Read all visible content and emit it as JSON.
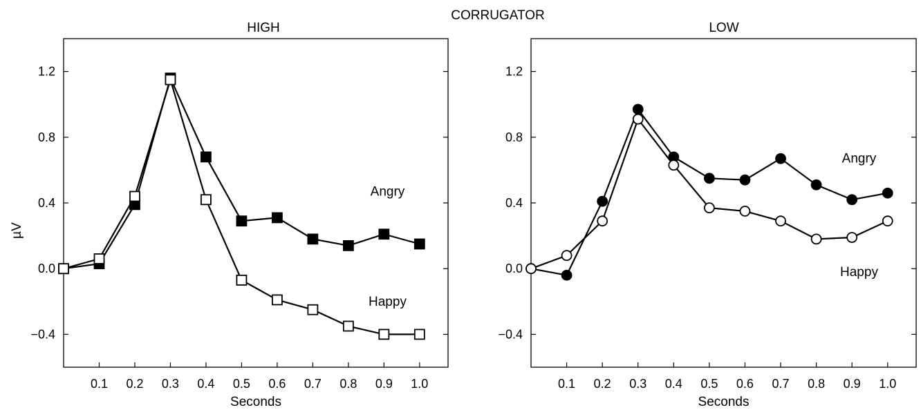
{
  "title": "CORRUGATOR",
  "colors": {
    "filled": "#000000",
    "open": "#ffffff",
    "stroke": "#000000"
  },
  "chart_data": [
    {
      "type": "line",
      "title": "HIGH",
      "xlabel": "Seconds",
      "ylabel": "µV",
      "xlim": [
        0.0,
        1.08
      ],
      "ylim": [
        -0.6,
        1.4
      ],
      "xticks": [
        0.1,
        0.2,
        0.3,
        0.4,
        0.5,
        0.6,
        0.7,
        0.8,
        0.9,
        1.0
      ],
      "xtick_labels": [
        "0.1",
        "0.2",
        "0.3",
        "0.4",
        "0.5",
        "0.6",
        "0.7",
        "0.8",
        "0.9",
        "1.0"
      ],
      "yticks": [
        -0.4,
        0.0,
        0.4,
        0.8,
        1.2
      ],
      "ytick_labels": [
        "−0.4",
        "0.0",
        "0.4",
        "0.8",
        "1.2"
      ],
      "grid": false,
      "marker": "square",
      "x": [
        0.0,
        0.1,
        0.2,
        0.3,
        0.4,
        0.5,
        0.6,
        0.7,
        0.8,
        0.9,
        1.0
      ],
      "series": [
        {
          "name": "Angry",
          "fill": "filled",
          "values": [
            0.0,
            0.03,
            0.39,
            1.16,
            0.68,
            0.29,
            0.31,
            0.18,
            0.14,
            0.21,
            0.15
          ]
        },
        {
          "name": "Happy",
          "fill": "open",
          "values": [
            0.0,
            0.06,
            0.44,
            1.15,
            0.42,
            -0.07,
            -0.19,
            -0.25,
            -0.35,
            -0.4,
            -0.4
          ]
        }
      ],
      "annotations": [
        {
          "text": "Angry",
          "x": 0.91,
          "y": 0.47
        },
        {
          "text": "Happy",
          "x": 0.91,
          "y": -0.2
        }
      ]
    },
    {
      "type": "line",
      "title": "LOW",
      "xlabel": "Seconds",
      "ylabel": "",
      "xlim": [
        0.0,
        1.08
      ],
      "ylim": [
        -0.6,
        1.4
      ],
      "xticks": [
        0.1,
        0.2,
        0.3,
        0.4,
        0.5,
        0.6,
        0.7,
        0.8,
        0.9,
        1.0
      ],
      "xtick_labels": [
        "0.1",
        "0.2",
        "0.3",
        "0.4",
        "0.5",
        "0.6",
        "0.7",
        "0.8",
        "0.9",
        "1.0"
      ],
      "yticks": [
        -0.4,
        0.0,
        0.4,
        0.8,
        1.2
      ],
      "ytick_labels": [
        "−0.4",
        "0.0",
        "0.4",
        "0.8",
        "1.2"
      ],
      "grid": false,
      "marker": "circle",
      "x": [
        0.0,
        0.1,
        0.2,
        0.3,
        0.4,
        0.5,
        0.6,
        0.7,
        0.8,
        0.9,
        1.0
      ],
      "series": [
        {
          "name": "Angry",
          "fill": "filled",
          "values": [
            0.0,
            -0.04,
            0.41,
            0.97,
            0.68,
            0.55,
            0.54,
            0.67,
            0.51,
            0.42,
            0.46
          ]
        },
        {
          "name": "Happy",
          "fill": "open",
          "values": [
            0.0,
            0.08,
            0.29,
            0.91,
            0.63,
            0.37,
            0.35,
            0.29,
            0.18,
            0.19,
            0.29
          ]
        }
      ],
      "annotations": [
        {
          "text": "Angry",
          "x": 0.92,
          "y": 0.67
        },
        {
          "text": "Happy",
          "x": 0.92,
          "y": -0.02
        }
      ]
    }
  ]
}
